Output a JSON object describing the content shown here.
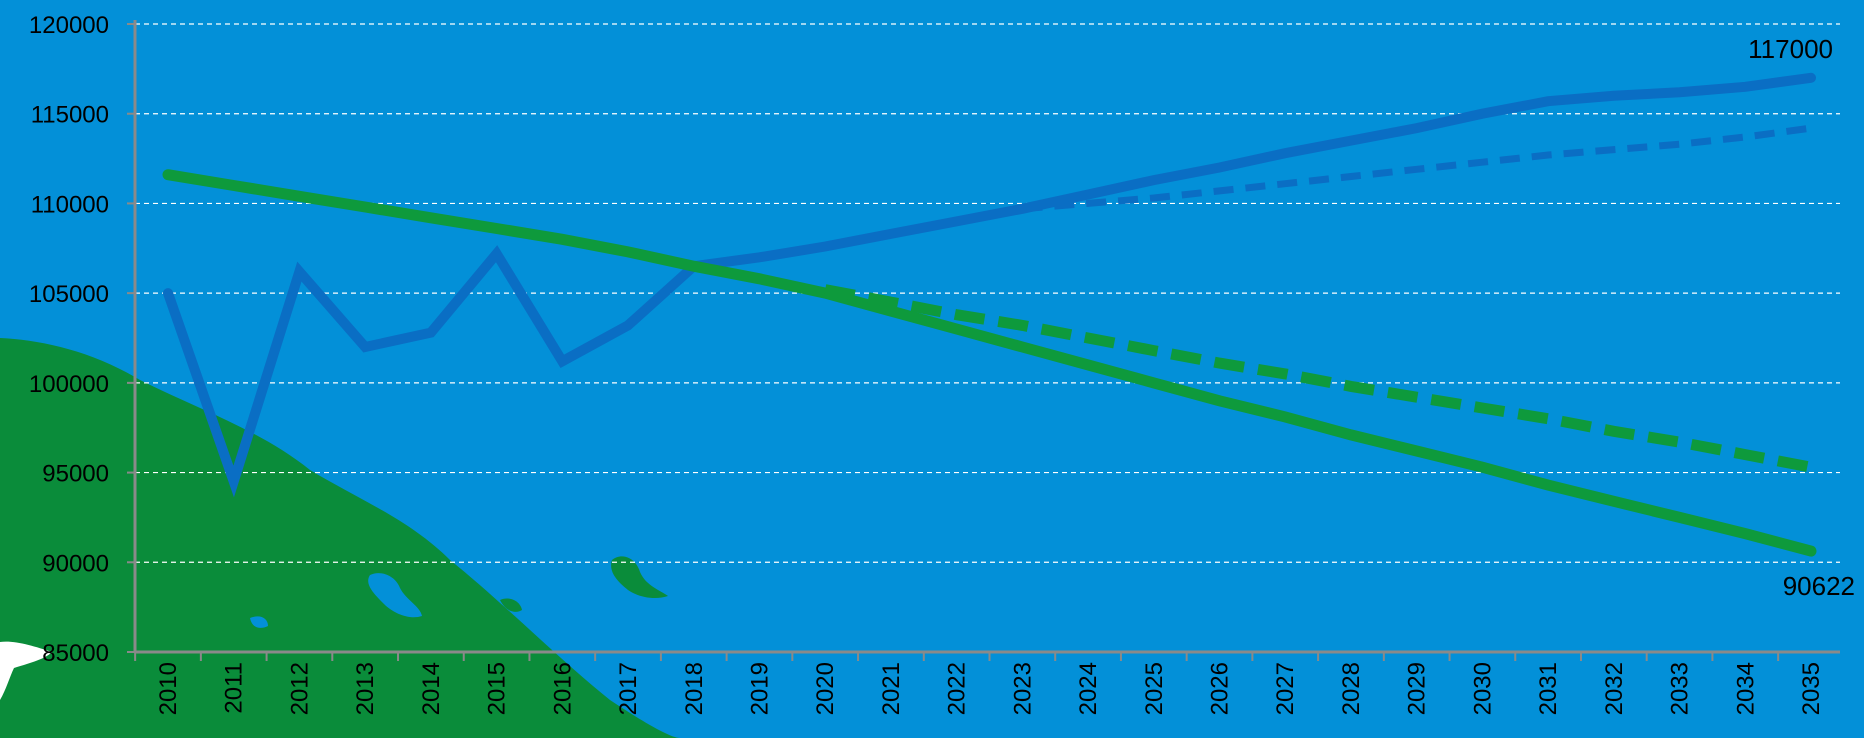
{
  "colors": {
    "background": "#0390d8",
    "land": "#0a8c3a",
    "land_dark": "#087a33",
    "blue_series": "#0a6ec4",
    "green_series": "#0e9a3c",
    "grid": "#ffffff",
    "axis": "#8a8a8a"
  },
  "chart_data": {
    "type": "line",
    "title": "",
    "xlabel": "",
    "ylabel": "",
    "ylim": [
      85000,
      120000
    ],
    "yticks": [
      "120000",
      "115000",
      "110000",
      "105000",
      "100000",
      "95000",
      "90000",
      "85000"
    ],
    "x": [
      "2010",
      "2011",
      "2012",
      "2013",
      "2014",
      "2015",
      "2016",
      "2017",
      "2018",
      "2019",
      "2020",
      "2021",
      "2022",
      "2023",
      "2024",
      "2025",
      "2026",
      "2027",
      "2028",
      "2029",
      "2030",
      "2031",
      "2032",
      "2033",
      "2034",
      "2035"
    ],
    "grid": true,
    "legend": "none",
    "series": [
      {
        "style": "solid",
        "color_key": "blue_series",
        "values": [
          105000,
          94500,
          106200,
          102000,
          102800,
          107200,
          101200,
          103200,
          106500,
          107000,
          107600,
          108300,
          109000,
          109700,
          110500,
          111300,
          112000,
          112800,
          113500,
          114200,
          115000,
          115700,
          116000,
          116200,
          116500,
          117000
        ]
      },
      {
        "style": "dashed",
        "color_key": "blue_series",
        "values": [
          null,
          null,
          null,
          null,
          null,
          null,
          null,
          null,
          null,
          null,
          null,
          null,
          null,
          109700,
          110000,
          110300,
          110700,
          111100,
          111500,
          111900,
          112300,
          112700,
          113000,
          113300,
          113700,
          114200
        ]
      },
      {
        "style": "solid",
        "color_key": "green_series",
        "values": [
          111600,
          111000,
          110400,
          109800,
          109200,
          108600,
          108000,
          107300,
          106500,
          105800,
          105000,
          104000,
          103000,
          102000,
          101000,
          100000,
          99000,
          98100,
          97100,
          96200,
          95300,
          94300,
          93400,
          92500,
          91600,
          90622
        ]
      },
      {
        "style": "dashed",
        "color_key": "green_series",
        "values": [
          null,
          null,
          null,
          null,
          null,
          null,
          null,
          null,
          null,
          null,
          105200,
          104500,
          103800,
          103200,
          102500,
          101800,
          101100,
          100500,
          99800,
          99200,
          98600,
          98000,
          97300,
          96700,
          96000,
          95300
        ]
      }
    ],
    "annotations": [
      {
        "text": "117000",
        "x": "2035",
        "y": 117000,
        "series": 0,
        "placement": "above"
      },
      {
        "text": "90622",
        "x": "2035",
        "y": 90622,
        "series": 2,
        "placement": "below"
      }
    ]
  }
}
